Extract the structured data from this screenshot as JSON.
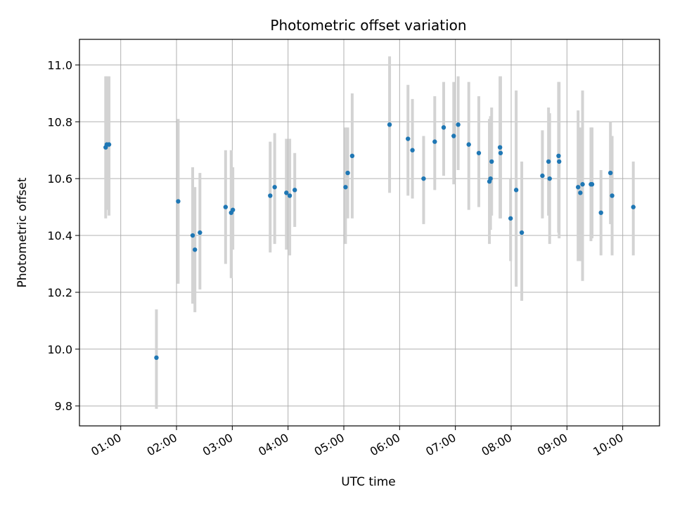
{
  "chart_data": {
    "type": "scatter",
    "title": "Photometric offset variation",
    "xlabel": "UTC time",
    "ylabel": "Photometric offset",
    "x_tick_labels": [
      "01:00",
      "02:00",
      "03:00",
      "04:00",
      "05:00",
      "06:00",
      "07:00",
      "08:00",
      "09:00",
      "10:00"
    ],
    "y_tick_labels": [
      "9.8",
      "10.0",
      "10.2",
      "10.4",
      "10.6",
      "10.8",
      "11.0"
    ],
    "x_ticks_hours": [
      1,
      2,
      3,
      4,
      5,
      6,
      7,
      8,
      9,
      10
    ],
    "y_ticks": [
      9.8,
      10.0,
      10.2,
      10.4,
      10.6,
      10.8,
      11.0
    ],
    "xlim_hours": [
      0.26,
      10.66
    ],
    "ylim": [
      9.73,
      11.09
    ],
    "grid": true,
    "point_color": "#1f77b4",
    "errorbar_color": "#d3d3d3",
    "series": [
      {
        "x_hours": [
          0.73,
          0.75,
          0.79,
          1.64,
          2.03,
          2.29,
          2.33,
          2.42,
          2.88,
          2.98,
          3.01,
          3.68,
          3.76,
          3.97,
          4.03,
          4.12,
          5.03,
          5.07,
          5.15,
          5.82,
          6.15,
          6.23,
          6.43,
          6.63,
          6.79,
          6.97,
          7.05,
          7.24,
          7.42,
          7.61,
          7.63,
          7.65,
          7.8,
          7.81,
          7.99,
          8.09,
          8.19,
          8.56,
          8.67,
          8.69,
          8.85,
          8.86,
          9.2,
          9.24,
          9.28,
          9.43,
          9.45,
          9.61,
          9.78,
          9.81,
          10.19
        ],
        "y": [
          10.71,
          10.72,
          10.72,
          9.97,
          10.52,
          10.4,
          10.35,
          10.41,
          10.5,
          10.48,
          10.49,
          10.54,
          10.57,
          10.55,
          10.54,
          10.56,
          10.57,
          10.62,
          10.68,
          10.79,
          10.74,
          10.7,
          10.6,
          10.73,
          10.78,
          10.75,
          10.79,
          10.72,
          10.69,
          10.59,
          10.6,
          10.66,
          10.71,
          10.69,
          10.46,
          10.56,
          10.41,
          10.61,
          10.66,
          10.6,
          10.68,
          10.66,
          10.57,
          10.55,
          10.58,
          10.58,
          10.58,
          10.48,
          10.62,
          10.54,
          10.5
        ],
        "y_low": [
          10.46,
          10.49,
          10.47,
          9.79,
          10.23,
          10.16,
          10.13,
          10.21,
          10.3,
          10.25,
          10.35,
          10.34,
          10.37,
          10.35,
          10.33,
          10.43,
          10.37,
          10.46,
          10.46,
          10.55,
          10.54,
          10.53,
          10.44,
          10.56,
          10.61,
          10.58,
          10.63,
          10.49,
          10.5,
          10.37,
          10.42,
          10.47,
          10.46,
          10.46,
          10.31,
          10.22,
          10.17,
          10.46,
          10.47,
          10.37,
          10.41,
          10.39,
          10.31,
          10.31,
          10.24,
          10.38,
          10.39,
          10.33,
          10.44,
          10.33,
          10.33
        ],
        "y_high": [
          10.96,
          10.96,
          10.96,
          10.14,
          10.81,
          10.64,
          10.57,
          10.62,
          10.7,
          10.7,
          10.64,
          10.73,
          10.76,
          10.74,
          10.74,
          10.69,
          10.78,
          10.78,
          10.9,
          11.03,
          10.93,
          10.88,
          10.75,
          10.89,
          10.94,
          10.94,
          10.96,
          10.94,
          10.89,
          10.81,
          10.82,
          10.85,
          10.96,
          10.96,
          10.6,
          10.91,
          10.66,
          10.77,
          10.85,
          10.83,
          10.94,
          10.94,
          10.84,
          10.78,
          10.91,
          10.78,
          10.78,
          10.63,
          10.8,
          10.75,
          10.66
        ]
      }
    ]
  }
}
